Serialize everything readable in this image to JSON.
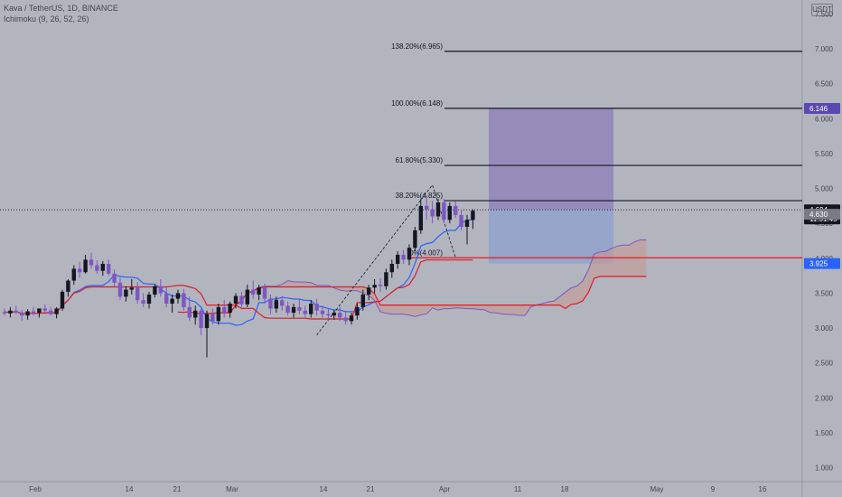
{
  "header": {
    "symbol_line": "Kava / TetherUS, 1D, BINANCE",
    "indicator_line": "Ichimoku (9, 26, 52, 26)"
  },
  "currency": "USDT",
  "colors": {
    "background": "#b2b5be",
    "bull_candle": "#131722",
    "bear_candle": "#7e57c2",
    "kijun": "#e01b24",
    "tenkan": "#2962ff",
    "span_b": "#e01b24",
    "span_a": "#7e57c2",
    "cloud_fill": "#c9978f",
    "target_zone": "#8c7fb8",
    "stop_zone": "#8fa3cc"
  },
  "chart_data": {
    "type": "candlestick",
    "y_axis": {
      "range": [
        0.8,
        7.7
      ],
      "ticks": [
        "1.000",
        "1.500",
        "2.000",
        "2.500",
        "3.000",
        "3.500",
        "4.000",
        "4.500",
        "5.000",
        "5.500",
        "6.000",
        "6.500",
        "7.000",
        "7.500"
      ]
    },
    "x_axis": {
      "ticks": [
        "Feb",
        "14",
        "21",
        "Mar",
        "14",
        "21",
        "Apr",
        "11",
        "18",
        "May",
        "9",
        "16"
      ]
    },
    "fib_levels": [
      {
        "label": "38.20%(4.825)",
        "value": 4.825
      },
      {
        "label": "61.80%(5.330)",
        "value": 5.33
      },
      {
        "label": "100.00%(6.148)",
        "value": 6.148
      },
      {
        "label": "138.20%(6.965)",
        "value": 6.965
      },
      {
        "label": "0%(4.007)",
        "value": 4.007
      }
    ],
    "price_tags": [
      {
        "label": "4.694",
        "value": 4.694,
        "extra": "11:51:45",
        "style": "last"
      },
      {
        "label": "4.630",
        "value": 4.63,
        "style": "grey"
      },
      {
        "label": "6.146",
        "value": 6.146,
        "style": "target"
      },
      {
        "label": "3.925",
        "value": 3.925,
        "style": "stop"
      }
    ],
    "position": {
      "entry": 4.694,
      "target": 6.146,
      "stop": 3.925
    },
    "candles": [
      [
        3.23,
        3.28,
        3.18,
        3.21
      ],
      [
        3.21,
        3.3,
        3.15,
        3.25
      ],
      [
        3.25,
        3.32,
        3.2,
        3.22
      ],
      [
        3.22,
        3.26,
        3.1,
        3.18
      ],
      [
        3.18,
        3.27,
        3.12,
        3.24
      ],
      [
        3.24,
        3.3,
        3.18,
        3.22
      ],
      [
        3.22,
        3.28,
        3.15,
        3.28
      ],
      [
        3.28,
        3.34,
        3.2,
        3.25
      ],
      [
        3.25,
        3.3,
        3.18,
        3.2
      ],
      [
        3.2,
        3.3,
        3.14,
        3.28
      ],
      [
        3.28,
        3.55,
        3.25,
        3.52
      ],
      [
        3.52,
        3.7,
        3.45,
        3.68
      ],
      [
        3.68,
        3.9,
        3.62,
        3.85
      ],
      [
        3.85,
        3.95,
        3.72,
        3.8
      ],
      [
        3.8,
        4.05,
        3.78,
        3.98
      ],
      [
        3.98,
        4.08,
        3.85,
        3.9
      ],
      [
        3.9,
        3.97,
        3.78,
        3.82
      ],
      [
        3.82,
        3.96,
        3.75,
        3.92
      ],
      [
        3.92,
        3.98,
        3.75,
        3.78
      ],
      [
        3.78,
        3.84,
        3.6,
        3.65
      ],
      [
        3.65,
        3.72,
        3.4,
        3.45
      ],
      [
        3.45,
        3.6,
        3.38,
        3.55
      ],
      [
        3.55,
        3.7,
        3.48,
        3.58
      ],
      [
        3.58,
        3.66,
        3.35,
        3.4
      ],
      [
        3.4,
        3.5,
        3.3,
        3.35
      ],
      [
        3.35,
        3.52,
        3.28,
        3.48
      ],
      [
        3.48,
        3.62,
        3.44,
        3.6
      ],
      [
        3.6,
        3.7,
        3.45,
        3.5
      ],
      [
        3.5,
        3.6,
        3.3,
        3.35
      ],
      [
        3.35,
        3.48,
        3.22,
        3.42
      ],
      [
        3.42,
        3.55,
        3.35,
        3.5
      ],
      [
        3.5,
        3.56,
        3.25,
        3.3
      ],
      [
        3.3,
        3.45,
        3.1,
        3.15
      ],
      [
        3.15,
        3.32,
        3.05,
        3.25
      ],
      [
        3.25,
        3.28,
        2.9,
        3.0
      ],
      [
        3.0,
        3.25,
        2.58,
        3.2
      ],
      [
        3.2,
        3.28,
        3.05,
        3.1
      ],
      [
        3.1,
        3.35,
        3.05,
        3.3
      ],
      [
        3.3,
        3.4,
        3.15,
        3.22
      ],
      [
        3.22,
        3.38,
        3.15,
        3.35
      ],
      [
        3.35,
        3.5,
        3.28,
        3.46
      ],
      [
        3.46,
        3.52,
        3.3,
        3.34
      ],
      [
        3.34,
        3.62,
        3.3,
        3.55
      ],
      [
        3.55,
        3.68,
        3.42,
        3.48
      ],
      [
        3.48,
        3.62,
        3.4,
        3.58
      ],
      [
        3.58,
        3.64,
        3.35,
        3.42
      ],
      [
        3.42,
        3.48,
        3.2,
        3.28
      ],
      [
        3.28,
        3.45,
        3.22,
        3.4
      ],
      [
        3.4,
        3.46,
        3.25,
        3.32
      ],
      [
        3.32,
        3.38,
        3.18,
        3.22
      ],
      [
        3.22,
        3.35,
        3.15,
        3.3
      ],
      [
        3.3,
        3.42,
        3.2,
        3.25
      ],
      [
        3.25,
        3.32,
        3.15,
        3.2
      ],
      [
        3.2,
        3.4,
        3.15,
        3.35
      ],
      [
        3.35,
        3.42,
        3.18,
        3.25
      ],
      [
        3.25,
        3.32,
        3.15,
        3.2
      ],
      [
        3.2,
        3.28,
        3.1,
        3.18
      ],
      [
        3.18,
        3.26,
        3.12,
        3.22
      ],
      [
        3.22,
        3.3,
        3.1,
        3.15
      ],
      [
        3.15,
        3.25,
        3.05,
        3.1
      ],
      [
        3.1,
        3.22,
        3.05,
        3.18
      ],
      [
        3.18,
        3.35,
        3.12,
        3.3
      ],
      [
        3.3,
        3.55,
        3.25,
        3.48
      ],
      [
        3.48,
        3.62,
        3.4,
        3.58
      ],
      [
        3.58,
        3.7,
        3.5,
        3.62
      ],
      [
        3.62,
        3.72,
        3.52,
        3.6
      ],
      [
        3.6,
        3.85,
        3.55,
        3.8
      ],
      [
        3.8,
        3.98,
        3.72,
        3.92
      ],
      [
        3.92,
        4.1,
        3.85,
        4.05
      ],
      [
        4.05,
        4.12,
        3.92,
        3.98
      ],
      [
        3.98,
        4.2,
        3.9,
        4.15
      ],
      [
        4.15,
        4.45,
        4.1,
        4.4
      ],
      [
        4.4,
        4.85,
        4.35,
        4.75
      ],
      [
        4.75,
        4.9,
        4.55,
        4.7
      ],
      [
        4.7,
        4.82,
        4.5,
        4.6
      ],
      [
        4.6,
        4.85,
        4.55,
        4.8
      ],
      [
        4.8,
        4.85,
        4.5,
        4.55
      ],
      [
        4.55,
        4.8,
        4.5,
        4.75
      ],
      [
        4.75,
        4.82,
        4.58,
        4.62
      ],
      [
        4.62,
        4.7,
        4.4,
        4.45
      ],
      [
        4.45,
        4.62,
        4.2,
        4.55
      ],
      [
        4.55,
        4.7,
        4.42,
        4.68
      ]
    ]
  }
}
